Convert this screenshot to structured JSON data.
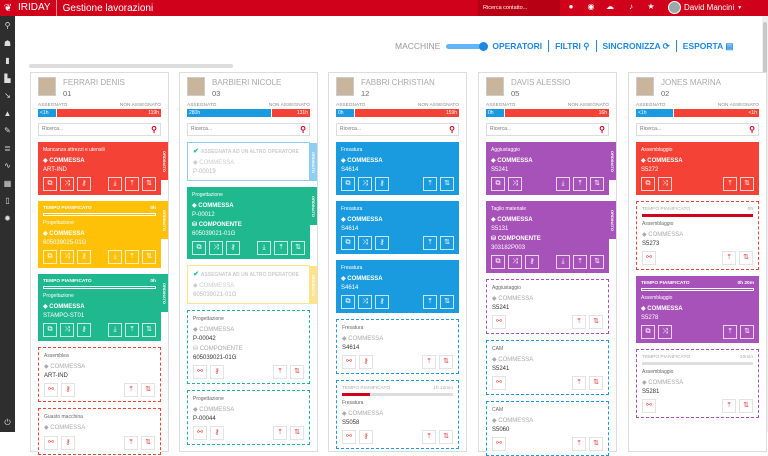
{
  "topbar": {
    "brand": "IRIDAY",
    "title": "Gestione lavorazioni",
    "search_placeholder": "Ricerca contatto...",
    "user_name": "David Mancini",
    "icons": [
      "map-marker-icon",
      "compass-icon",
      "chat-icon",
      "bell-icon",
      "star-icon"
    ]
  },
  "sidebar": {
    "icons": [
      "search-icon",
      "user-icon",
      "book-icon",
      "factory-icon",
      "tool-icon",
      "car-icon",
      "ruler-icon",
      "stack-icon",
      "pulse-icon",
      "calendar-icon",
      "document-icon",
      "gear-icon"
    ],
    "bottom_icon": "power-icon"
  },
  "toolbar": {
    "macchine": "MACCHINE",
    "operatori": "OPERATORI",
    "filtri": "FILTRI",
    "sincronizza": "SINCRONIZZA",
    "esporta": "ESPORTA",
    "mode": "operatori"
  },
  "labels": {
    "assegnato": "ASSEGNATO",
    "non_assegnato": "NON ASSEGNATO",
    "search_placeholder": "Ricerca...",
    "ordinato": "ORDINATO",
    "planned": "TEMPO PIANIFICATO",
    "assigned_other": "ASSEGNATA AD UN ALTRO OPERATORE",
    "commessa": "COMMESSA",
    "componente": "COMPONENTE"
  },
  "colors": {
    "red": "#f44336",
    "yellow": "#ffc107",
    "green": "#1fb88f",
    "blue": "#1a9be0",
    "purple": "#a652b8",
    "lightblue": "#8ccff0",
    "lightyellow": "#ffe38a",
    "brand": "#d0021b"
  },
  "columns": [
    {
      "name": "FERRARI DENIS",
      "code": "01",
      "assigned": "<1h",
      "unassigned": "119h",
      "assigned_fraction": 0.15,
      "cards": [
        {
          "style": "solid",
          "color": "red",
          "tab": true,
          "phase": "Mancanza attrezzi e utensili",
          "rows": [
            {
              "label": "COMMESSA",
              "value": "ART-IND"
            }
          ],
          "left": 3,
          "right": 3
        },
        {
          "style": "solid",
          "color": "yellow",
          "tab": true,
          "planned": {
            "value": "0h",
            "fraction": 0
          },
          "phase": "Progettazione",
          "rows": [
            {
              "label": "COMMESSA",
              "value": "605039025-01G"
            }
          ],
          "left": 3,
          "right": 3
        },
        {
          "style": "solid",
          "color": "green",
          "tab": true,
          "planned": {
            "value": "0h",
            "fraction": 0
          },
          "phase": "Progettazione",
          "rows": [
            {
              "label": "COMMESSA",
              "value": "STAMPO-ST01"
            }
          ],
          "left": 3,
          "right": 3
        },
        {
          "style": "dashed",
          "color": "red",
          "phase": "Assemblea",
          "rows": [
            {
              "label": "COMMESSA",
              "value": "ART-IND"
            }
          ],
          "left": 2,
          "right": 2
        },
        {
          "style": "dashed",
          "color": "red",
          "phase": "Guasto macchina",
          "rows": [
            {
              "label": "COMMESSA",
              "value": ""
            }
          ],
          "left": 2,
          "right": 2
        }
      ]
    },
    {
      "name": "BARBIERI NICOLE",
      "code": "03",
      "assigned": "280h",
      "unassigned": "131h",
      "assigned_fraction": 0.68,
      "cards": [
        {
          "style": "outline",
          "color": "lightblue",
          "tab": true,
          "rows": [
            {
              "label": "COMMESSA",
              "value": "P-00019"
            }
          ]
        },
        {
          "style": "solid",
          "color": "green",
          "tab": true,
          "phase": "Progettazione",
          "rows": [
            {
              "label": "COMMESSA",
              "value": "P-00012"
            },
            {
              "label": "COMPONENTE",
              "value": "605039021-01G",
              "icon": "component"
            }
          ],
          "left": 3,
          "right": 3
        },
        {
          "style": "outline",
          "color": "lightyellow",
          "tab": true,
          "rows": [
            {
              "label": "COMMESSA",
              "value": "605039021-01G"
            }
          ]
        },
        {
          "style": "dashed",
          "color": "green",
          "phase": "Progettazione",
          "rows": [
            {
              "label": "COMMESSA",
              "value": "P-00042"
            },
            {
              "label": "COMPONENTE",
              "value": "605039021-01G",
              "icon": "component"
            }
          ],
          "left": 2,
          "right": 2
        },
        {
          "style": "dashed",
          "color": "green",
          "phase": "Progettazione",
          "rows": [
            {
              "label": "COMMESSA",
              "value": "P-00044"
            }
          ],
          "left": 2,
          "right": 2
        }
      ]
    },
    {
      "name": "FABBRI CHRISTIAN",
      "code": "12",
      "assigned": "0h",
      "unassigned": "159h",
      "assigned_fraction": 0.15,
      "cards": [
        {
          "style": "solid",
          "color": "blue",
          "phase": "Fresatura",
          "rows": [
            {
              "label": "COMMESSA",
              "value": "S4614"
            }
          ],
          "left": 3,
          "right": 2
        },
        {
          "style": "solid",
          "color": "blue",
          "phase": "Fresatura",
          "rows": [
            {
              "label": "COMMESSA",
              "value": "S4614"
            }
          ],
          "left": 3,
          "right": 2
        },
        {
          "style": "solid",
          "color": "blue",
          "phase": "Fresatura",
          "rows": [
            {
              "label": "COMMESSA",
              "value": "S4614"
            }
          ],
          "left": 3,
          "right": 2
        },
        {
          "style": "dashed",
          "color": "blue",
          "phase": "Fresatura",
          "rows": [
            {
              "label": "COMMESSA",
              "value": "S4614"
            }
          ],
          "left": 2,
          "right": 2
        },
        {
          "style": "dashed",
          "color": "blue",
          "planned": {
            "value": "1h 12min",
            "fraction": 0.25
          },
          "phase": "Fresatura",
          "rows": [
            {
              "label": "COMMESSA",
              "value": "S5058"
            }
          ],
          "left": 2,
          "right": 2
        }
      ]
    },
    {
      "name": "DAVIS ALESSIO",
      "code": "05",
      "assigned": "0h",
      "unassigned": "16h",
      "assigned_fraction": 0.15,
      "cards": [
        {
          "style": "solid",
          "color": "purple",
          "tab": true,
          "phase": "Aggiustaggio",
          "rows": [
            {
              "label": "COMMESSA",
              "value": "S5241"
            }
          ],
          "left": 2,
          "right": 3
        },
        {
          "style": "solid",
          "color": "purple",
          "tab": true,
          "phase": "Taglio materiale",
          "rows": [
            {
              "label": "COMMESSA",
              "value": "S5131"
            },
            {
              "label": "COMPONENTE",
              "value": "303182P003",
              "icon": "component"
            }
          ],
          "left": 3,
          "right": 3
        },
        {
          "style": "dashed",
          "color": "purple",
          "phase": "Aggiustaggio",
          "rows": [
            {
              "label": "COMMESSA",
              "value": "S5241"
            }
          ],
          "left": 1,
          "right": 2
        },
        {
          "style": "dashed",
          "color": "blue",
          "phase": "CAM",
          "rows": [
            {
              "label": "COMMESSA",
              "value": "S5241"
            }
          ],
          "left": 1,
          "right": 2
        },
        {
          "style": "dashed",
          "color": "blue",
          "phase": "CAM",
          "rows": [
            {
              "label": "COMMESSA",
              "value": "S5060"
            }
          ],
          "left": 1,
          "right": 2
        }
      ]
    },
    {
      "name": "JONES MARINA",
      "code": "02",
      "assigned": "<1h",
      "unassigned": "<1h",
      "assigned_fraction": 0.3,
      "cards": [
        {
          "style": "solid",
          "color": "red",
          "phase": "Assemblaggio",
          "rows": [
            {
              "label": "COMMESSA",
              "value": "S5272"
            }
          ],
          "left": 2,
          "right": 2
        },
        {
          "style": "dashed",
          "color": "red",
          "planned": {
            "value": "0h",
            "fraction": 1
          },
          "phase": "Assemblaggio",
          "rows": [
            {
              "label": "COMMESSA",
              "value": "S5273"
            }
          ],
          "left": 1,
          "right": 2
        },
        {
          "style": "solid",
          "color": "purple",
          "planned": {
            "value": "0h 20m",
            "fraction": 0
          },
          "phase": "Assemblaggio",
          "rows": [
            {
              "label": "COMMESSA",
              "value": "S5278"
            }
          ],
          "left": 2,
          "right": 2
        },
        {
          "style": "dashed",
          "color": "purple",
          "planned": {
            "value": "20min",
            "fraction": 0
          },
          "phase": "Assemblaggio",
          "rows": [
            {
              "label": "COMMESSA",
              "value": "S5281"
            }
          ],
          "left": 1,
          "right": 2
        }
      ]
    }
  ]
}
